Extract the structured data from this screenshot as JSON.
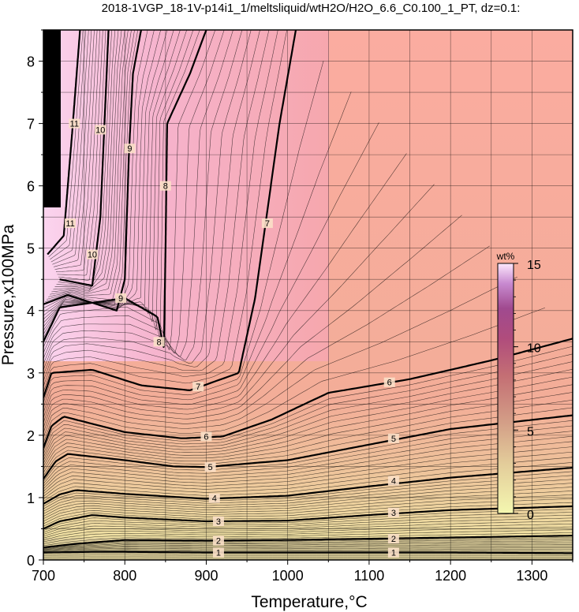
{
  "chart_data": {
    "type": "heatmap",
    "title": "2018-1VGP_18-1V-p14i1_1/meltsliquid/wtH2O/H2O_6.6_C0.100_1_PT, dz=0.1:",
    "xlabel": "Temperature,°C",
    "ylabel": "Pressure,x100MPa",
    "xlim": [
      700,
      1350
    ],
    "ylim": [
      0,
      8.5
    ],
    "x_ticks": [
      "700",
      "800",
      "900",
      "1000",
      "1100",
      "1200",
      "1300"
    ],
    "y_ticks": [
      "0",
      "1",
      "2",
      "3",
      "4",
      "5",
      "6",
      "7",
      "8"
    ],
    "grid": true,
    "colorbar": {
      "unit": "wt%",
      "range": [
        0,
        15
      ],
      "ticks": [
        "0",
        "5",
        "10",
        "15"
      ],
      "colors": [
        "#f4f7b0",
        "#e3cc9a",
        "#d29a85",
        "#c46f74",
        "#b64c7a",
        "#a04a8f",
        "#c88ad0",
        "#fde8fd"
      ]
    },
    "contour_interval": 0.1,
    "contours": [
      {
        "level": "1",
        "points": [
          [
            700,
            0.12
          ],
          [
            760,
            0.13
          ],
          [
            800,
            0.13
          ],
          [
            900,
            0.12
          ],
          [
            1000,
            0.12
          ],
          [
            1100,
            0.12
          ],
          [
            1200,
            0.12
          ],
          [
            1350,
            0.11
          ]
        ],
        "labels": [
          [
            915,
            0.12
          ],
          [
            1130,
            0.12
          ]
        ]
      },
      {
        "level": "2",
        "points": [
          [
            700,
            0.2
          ],
          [
            740,
            0.26
          ],
          [
            800,
            0.32
          ],
          [
            900,
            0.31
          ],
          [
            1000,
            0.32
          ],
          [
            1100,
            0.34
          ],
          [
            1200,
            0.36
          ],
          [
            1350,
            0.39
          ]
        ],
        "labels": [
          [
            915,
            0.31
          ],
          [
            1130,
            0.34
          ]
        ]
      },
      {
        "level": "3",
        "points": [
          [
            700,
            0.5
          ],
          [
            720,
            0.62
          ],
          [
            760,
            0.72
          ],
          [
            800,
            0.68
          ],
          [
            900,
            0.62
          ],
          [
            1000,
            0.63
          ],
          [
            1100,
            0.72
          ],
          [
            1200,
            0.8
          ],
          [
            1350,
            0.86
          ]
        ],
        "labels": [
          [
            915,
            0.62
          ],
          [
            1130,
            0.76
          ]
        ]
      },
      {
        "level": "4",
        "points": [
          [
            700,
            0.9
          ],
          [
            720,
            1.05
          ],
          [
            740,
            1.12
          ],
          [
            800,
            1.06
          ],
          [
            900,
            0.98
          ],
          [
            1000,
            1.03
          ],
          [
            1100,
            1.18
          ],
          [
            1200,
            1.32
          ],
          [
            1350,
            1.48
          ]
        ],
        "labels": [
          [
            910,
            0.99
          ],
          [
            1130,
            1.27
          ]
        ]
      },
      {
        "level": "5",
        "points": [
          [
            700,
            1.3
          ],
          [
            715,
            1.58
          ],
          [
            730,
            1.7
          ],
          [
            800,
            1.6
          ],
          [
            860,
            1.5
          ],
          [
            900,
            1.49
          ],
          [
            1000,
            1.6
          ],
          [
            1100,
            1.85
          ],
          [
            1200,
            2.1
          ],
          [
            1350,
            2.32
          ]
        ],
        "labels": [
          [
            905,
            1.49
          ],
          [
            1130,
            1.95
          ]
        ]
      },
      {
        "level": "6",
        "points": [
          [
            700,
            1.8
          ],
          [
            710,
            2.15
          ],
          [
            725,
            2.3
          ],
          [
            800,
            2.05
          ],
          [
            870,
            1.95
          ],
          [
            920,
            1.98
          ],
          [
            980,
            2.25
          ],
          [
            1050,
            2.68
          ],
          [
            1150,
            2.9
          ],
          [
            1250,
            3.2
          ],
          [
            1350,
            3.55
          ]
        ],
        "labels": [
          [
            900,
            1.98
          ],
          [
            1125,
            2.85
          ]
        ]
      },
      {
        "level": "7",
        "points": [
          [
            700,
            2.6
          ],
          [
            710,
            3.0
          ],
          [
            760,
            3.05
          ],
          [
            820,
            2.8
          ],
          [
            880,
            2.72
          ],
          [
            940,
            3.0
          ],
          [
            960,
            4.2
          ],
          [
            990,
            7.0
          ],
          [
            1010,
            8.5
          ]
        ],
        "labels": [
          [
            890,
            2.78
          ],
          [
            975,
            5.4
          ]
        ]
      },
      {
        "level": "8",
        "points": [
          [
            700,
            3.5
          ],
          [
            720,
            4.05
          ],
          [
            800,
            4.2
          ],
          [
            840,
            3.9
          ],
          [
            848,
            3.4
          ],
          [
            850,
            5.0
          ],
          [
            852,
            7.0
          ],
          [
            880,
            7.8
          ],
          [
            900,
            8.5
          ]
        ],
        "labels": [
          [
            842,
            3.5
          ],
          [
            850,
            6.0
          ]
        ]
      },
      {
        "level": "9",
        "points": [
          [
            700,
            4.1
          ],
          [
            730,
            4.25
          ],
          [
            790,
            4.0
          ],
          [
            800,
            4.5
          ],
          [
            805,
            6.5
          ],
          [
            810,
            7.8
          ],
          [
            820,
            8.5
          ]
        ],
        "labels": [
          [
            795,
            4.2
          ],
          [
            806,
            6.6
          ]
        ]
      },
      {
        "level": "10",
        "points": [
          [
            720,
            4.5
          ],
          [
            760,
            4.4
          ],
          [
            770,
            5.5
          ],
          [
            775,
            7.0
          ],
          [
            780,
            8.5
          ]
        ],
        "labels": [
          [
            760,
            4.9
          ],
          [
            770,
            6.9
          ]
        ]
      },
      {
        "level": "11",
        "points": [
          [
            705,
            4.9
          ],
          [
            725,
            5.2
          ],
          [
            735,
            6.8
          ],
          [
            745,
            8.5
          ]
        ],
        "labels": [
          [
            733,
            5.4
          ],
          [
            738,
            7.0
          ]
        ]
      }
    ]
  }
}
